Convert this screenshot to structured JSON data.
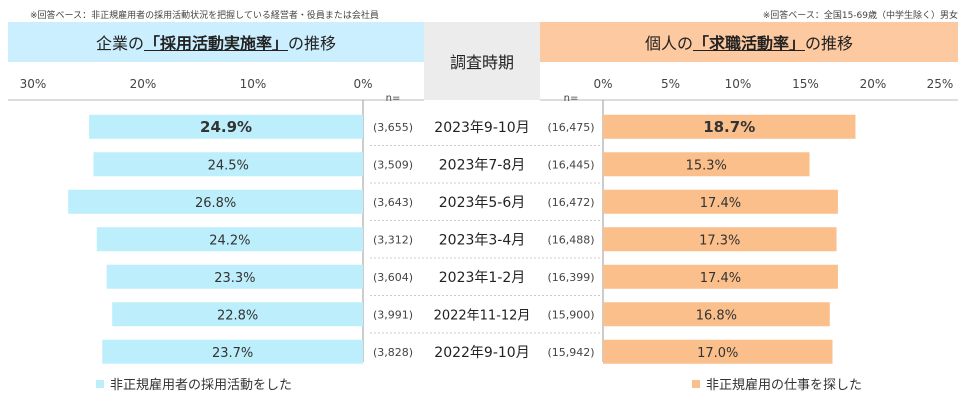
{
  "notes": {
    "left": "※回答ベース：非正規雇用者の採用活動状況を把握している経営者・役員または会社員",
    "right": "※回答ベース：全国15-69歳（中学生除く）男女"
  },
  "headers": {
    "left_prefix": "企業の",
    "left_highlight": "「採用活動実施率」",
    "left_suffix": "の推移",
    "middle": "調査時期",
    "right_prefix": "個人の",
    "right_highlight": "「求職活動率」",
    "right_suffix": "の推移"
  },
  "legend": {
    "left": "非正規雇用者の採用活動をした",
    "right": "非正規雇用の仕事を探した"
  },
  "colors": {
    "company_bar": "#bdeefb",
    "individual_bar": "#fbbf8b",
    "header_left": "#ccefff",
    "header_right": "#fcc9a0",
    "header_mid": "#ececec"
  },
  "chart_data": {
    "type": "bar",
    "n_label": "n=",
    "categories": [
      "2023年9-10月",
      "2023年7-8月",
      "2023年5-6月",
      "2023年3-4月",
      "2023年1-2月",
      "2022年11-12月",
      "2022年9-10月"
    ],
    "company": {
      "name": "非正規雇用者の採用活動をした",
      "values": [
        24.9,
        24.5,
        26.8,
        24.2,
        23.3,
        22.8,
        23.7
      ],
      "labels": [
        "24.9%",
        "24.5%",
        "26.8%",
        "24.2%",
        "23.3%",
        "22.8%",
        "23.7%"
      ],
      "n": [
        "(3,655)",
        "(3,509)",
        "(3,643)",
        "(3,312)",
        "(3,604)",
        "(3,991)",
        "(3,828)"
      ],
      "xlim": [
        0,
        30
      ],
      "ticks": [
        "30%",
        "20%",
        "10%",
        "0%"
      ]
    },
    "individual": {
      "name": "非正規雇用の仕事を探した",
      "values": [
        18.7,
        15.3,
        17.4,
        17.3,
        17.4,
        16.8,
        17.0
      ],
      "labels": [
        "18.7%",
        "15.3%",
        "17.4%",
        "17.3%",
        "17.4%",
        "16.8%",
        "17.0%"
      ],
      "n": [
        "(16,475)",
        "(16,445)",
        "(16,472)",
        "(16,488)",
        "(16,399)",
        "(15,900)",
        "(15,942)"
      ],
      "xlim": [
        0,
        25
      ],
      "ticks": [
        "0%",
        "5%",
        "10%",
        "15%",
        "20%",
        "25%"
      ]
    },
    "highlighted_index": 0
  }
}
